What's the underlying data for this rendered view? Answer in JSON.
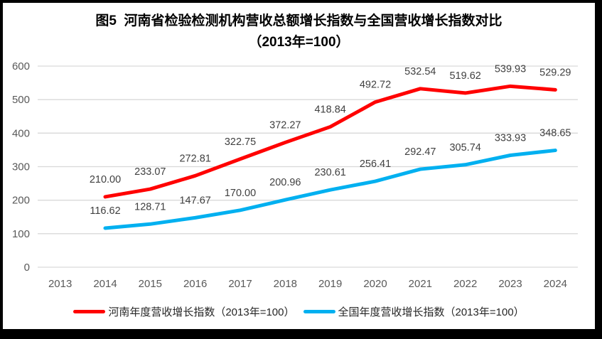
{
  "title": {
    "line1": "图5  河南省检验检测机构营收总额增长指数与全国营收增长指数对比",
    "line2": "（2013年=100）"
  },
  "chart_data": {
    "type": "line",
    "categories": [
      "2013",
      "2014",
      "2015",
      "2016",
      "2017",
      "2018",
      "2019",
      "2020",
      "2021",
      "2022",
      "2023",
      "2024"
    ],
    "series": [
      {
        "name": "河南年度营收增长指数（2013年=100）",
        "color": "#FF0000",
        "values": [
          null,
          210.0,
          233.07,
          272.81,
          322.75,
          372.27,
          418.84,
          492.72,
          532.54,
          519.62,
          539.93,
          529.29
        ]
      },
      {
        "name": "全国年度营收增长指数（2013年=100）",
        "color": "#00B0F0",
        "values": [
          null,
          116.62,
          128.71,
          147.67,
          170.0,
          200.96,
          230.61,
          256.41,
          292.47,
          305.74,
          333.93,
          348.65
        ]
      }
    ],
    "ylim": [
      0,
      600
    ],
    "yticks": [
      0,
      100,
      200,
      300,
      400,
      500,
      600
    ],
    "grid": true,
    "data_labels": true,
    "label_decimals": 2,
    "legend_position": "bottom"
  },
  "style": {
    "frame_border_color": "#000000",
    "background_color": "#ffffff",
    "gridline_color": "#d9d9d9",
    "axis_text_color": "#595959",
    "data_label_color": "#404040",
    "title_color": "#000000",
    "legend_text_color": "#262626"
  }
}
